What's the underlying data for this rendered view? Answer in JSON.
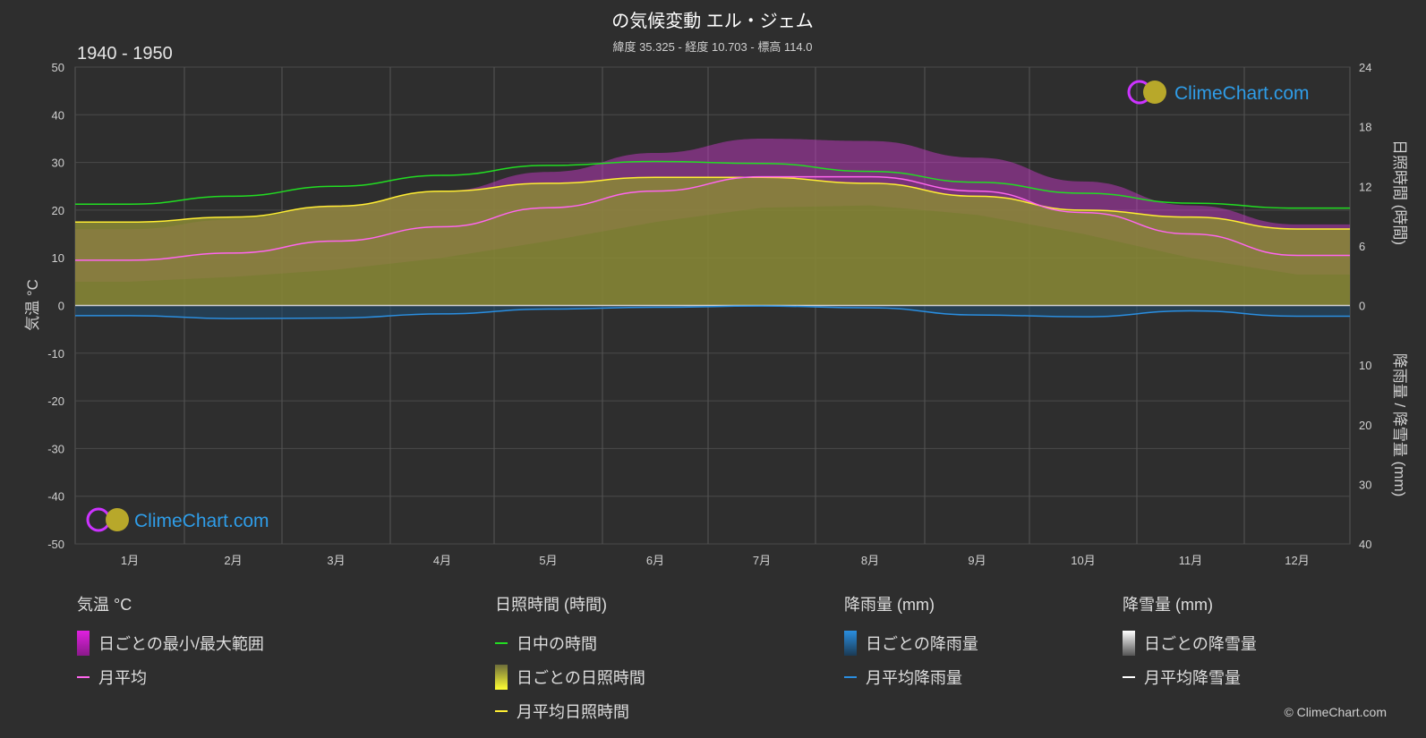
{
  "header": {
    "title": "の気候変動 エル・ジェム",
    "subtitle": "緯度 35.325 - 経度 10.703 - 標高 114.0",
    "period": "1940 - 1950"
  },
  "axes": {
    "left_label": "気温 °C",
    "right_top_label": "日照時間 (時間)",
    "right_bottom_label": "降雨量 / 降雪量 (mm)"
  },
  "logo": {
    "text": "ClimeChart.com"
  },
  "copyright": "© ClimeChart.com",
  "legend": {
    "temperature": {
      "heading": "気温 °C",
      "items": [
        {
          "label": "日ごとの最小/最大範囲",
          "color": "#e020e0"
        },
        {
          "label": "月平均",
          "color": "#ff66ee"
        }
      ]
    },
    "sunshine": {
      "heading": "日照時間 (時間)",
      "items": [
        {
          "label": "日中の時間",
          "color": "#22dd22"
        },
        {
          "label": "日ごとの日照時間",
          "color": "#c8c83a"
        },
        {
          "label": "月平均日照時間",
          "color": "#ffee33"
        }
      ]
    },
    "rain": {
      "heading": "降雨量 (mm)",
      "items": [
        {
          "label": "日ごとの降雨量",
          "color": "#2a8ee0"
        },
        {
          "label": "月平均降雨量",
          "color": "#2a8ee0"
        }
      ]
    },
    "snow": {
      "heading": "降雪量 (mm)",
      "items": [
        {
          "label": "日ごとの降雪量",
          "color": "#dddddd"
        },
        {
          "label": "月平均降雪量",
          "color": "#ffffff"
        }
      ]
    }
  },
  "chart_data": {
    "type": "area",
    "categories": [
      "1月",
      "2月",
      "3月",
      "4月",
      "5月",
      "6月",
      "7月",
      "8月",
      "9月",
      "10月",
      "11月",
      "12月"
    ],
    "y_left": {
      "label": "気温 °C",
      "range": [
        -50,
        50
      ],
      "ticks": [
        50,
        40,
        30,
        20,
        10,
        0,
        -10,
        -20,
        -30,
        -40,
        -50
      ]
    },
    "y_right_top": {
      "label": "日照時間 (時間)",
      "range": [
        0,
        24
      ],
      "ticks": [
        24,
        18,
        12,
        6,
        0
      ]
    },
    "y_right_bottom": {
      "label": "降雨量 / 降雪量 (mm)",
      "range": [
        0,
        40
      ],
      "ticks": [
        10,
        20,
        30,
        40
      ]
    },
    "series": [
      {
        "name": "月平均",
        "unit": "°C",
        "values": [
          9.5,
          11,
          13.5,
          16.5,
          20.5,
          24,
          27,
          27,
          24,
          19.5,
          15,
          10.5
        ]
      },
      {
        "name": "日ごとの最小/最大範囲 (min)",
        "unit": "°C",
        "values": [
          5,
          6,
          7.5,
          10,
          13.5,
          17.5,
          20.5,
          21,
          19,
          15,
          10,
          6.5
        ]
      },
      {
        "name": "日ごとの最小/最大範囲 (max)",
        "unit": "°C",
        "values": [
          16,
          18,
          21,
          24,
          28,
          32,
          35,
          34.5,
          31,
          26,
          21,
          17
        ]
      },
      {
        "name": "日中の時間",
        "unit": "時間",
        "values": [
          10.2,
          11,
          12,
          13.1,
          14.1,
          14.5,
          14.3,
          13.5,
          12.4,
          11.3,
          10.3,
          9.8
        ]
      },
      {
        "name": "月平均日照時間",
        "unit": "時間",
        "values": [
          8.4,
          8.9,
          10,
          11.5,
          12.3,
          12.9,
          12.9,
          12.3,
          11,
          9.6,
          8.9,
          7.7
        ]
      },
      {
        "name": "月平均降雨量",
        "unit": "mm",
        "values": [
          1.7,
          2.2,
          2.1,
          1.4,
          0.6,
          0.3,
          0.1,
          0.4,
          1.6,
          1.9,
          0.9,
          1.8
        ]
      },
      {
        "name": "月平均降雪量",
        "unit": "mm",
        "values": [
          0,
          0,
          0,
          0,
          0,
          0,
          0,
          0,
          0,
          0,
          0,
          0
        ]
      }
    ],
    "grid": true
  }
}
